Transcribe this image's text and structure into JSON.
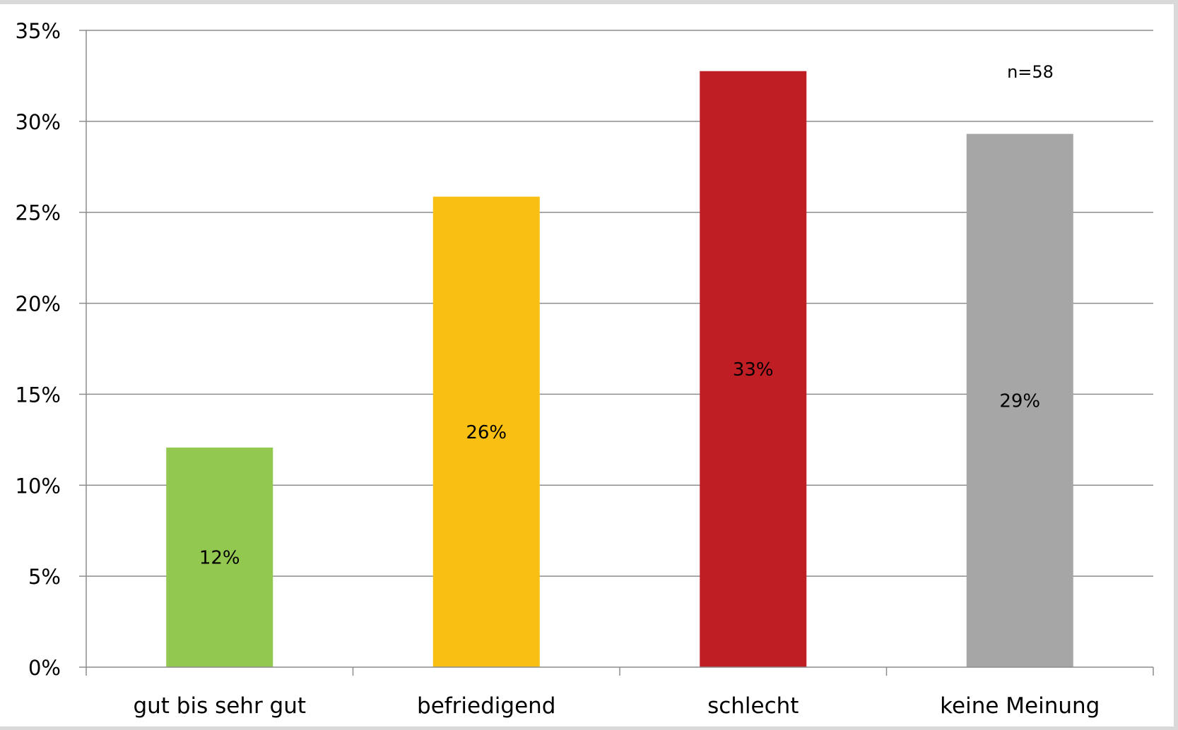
{
  "chart_data": {
    "type": "bar",
    "title": "",
    "xlabel": "",
    "ylabel": "",
    "categories": [
      "gut bis sehr gut",
      "befriedigend",
      "schlecht",
      "keine Meinung"
    ],
    "values": [
      12.07,
      25.86,
      32.76,
      29.31
    ],
    "data_labels": [
      "12%",
      "26%",
      "33%",
      "29%"
    ],
    "colors": [
      "#92c84f",
      "#f9c013",
      "#bf1e25",
      "#a6a6a6"
    ],
    "ylim": [
      0,
      35
    ],
    "yticks": [
      0,
      5,
      10,
      15,
      20,
      25,
      30,
      35
    ],
    "ytick_labels": [
      "0%",
      "5%",
      "10%",
      "15%",
      "20%",
      "25%",
      "30%",
      "35%"
    ],
    "grid": true,
    "annotation": "n=58"
  }
}
